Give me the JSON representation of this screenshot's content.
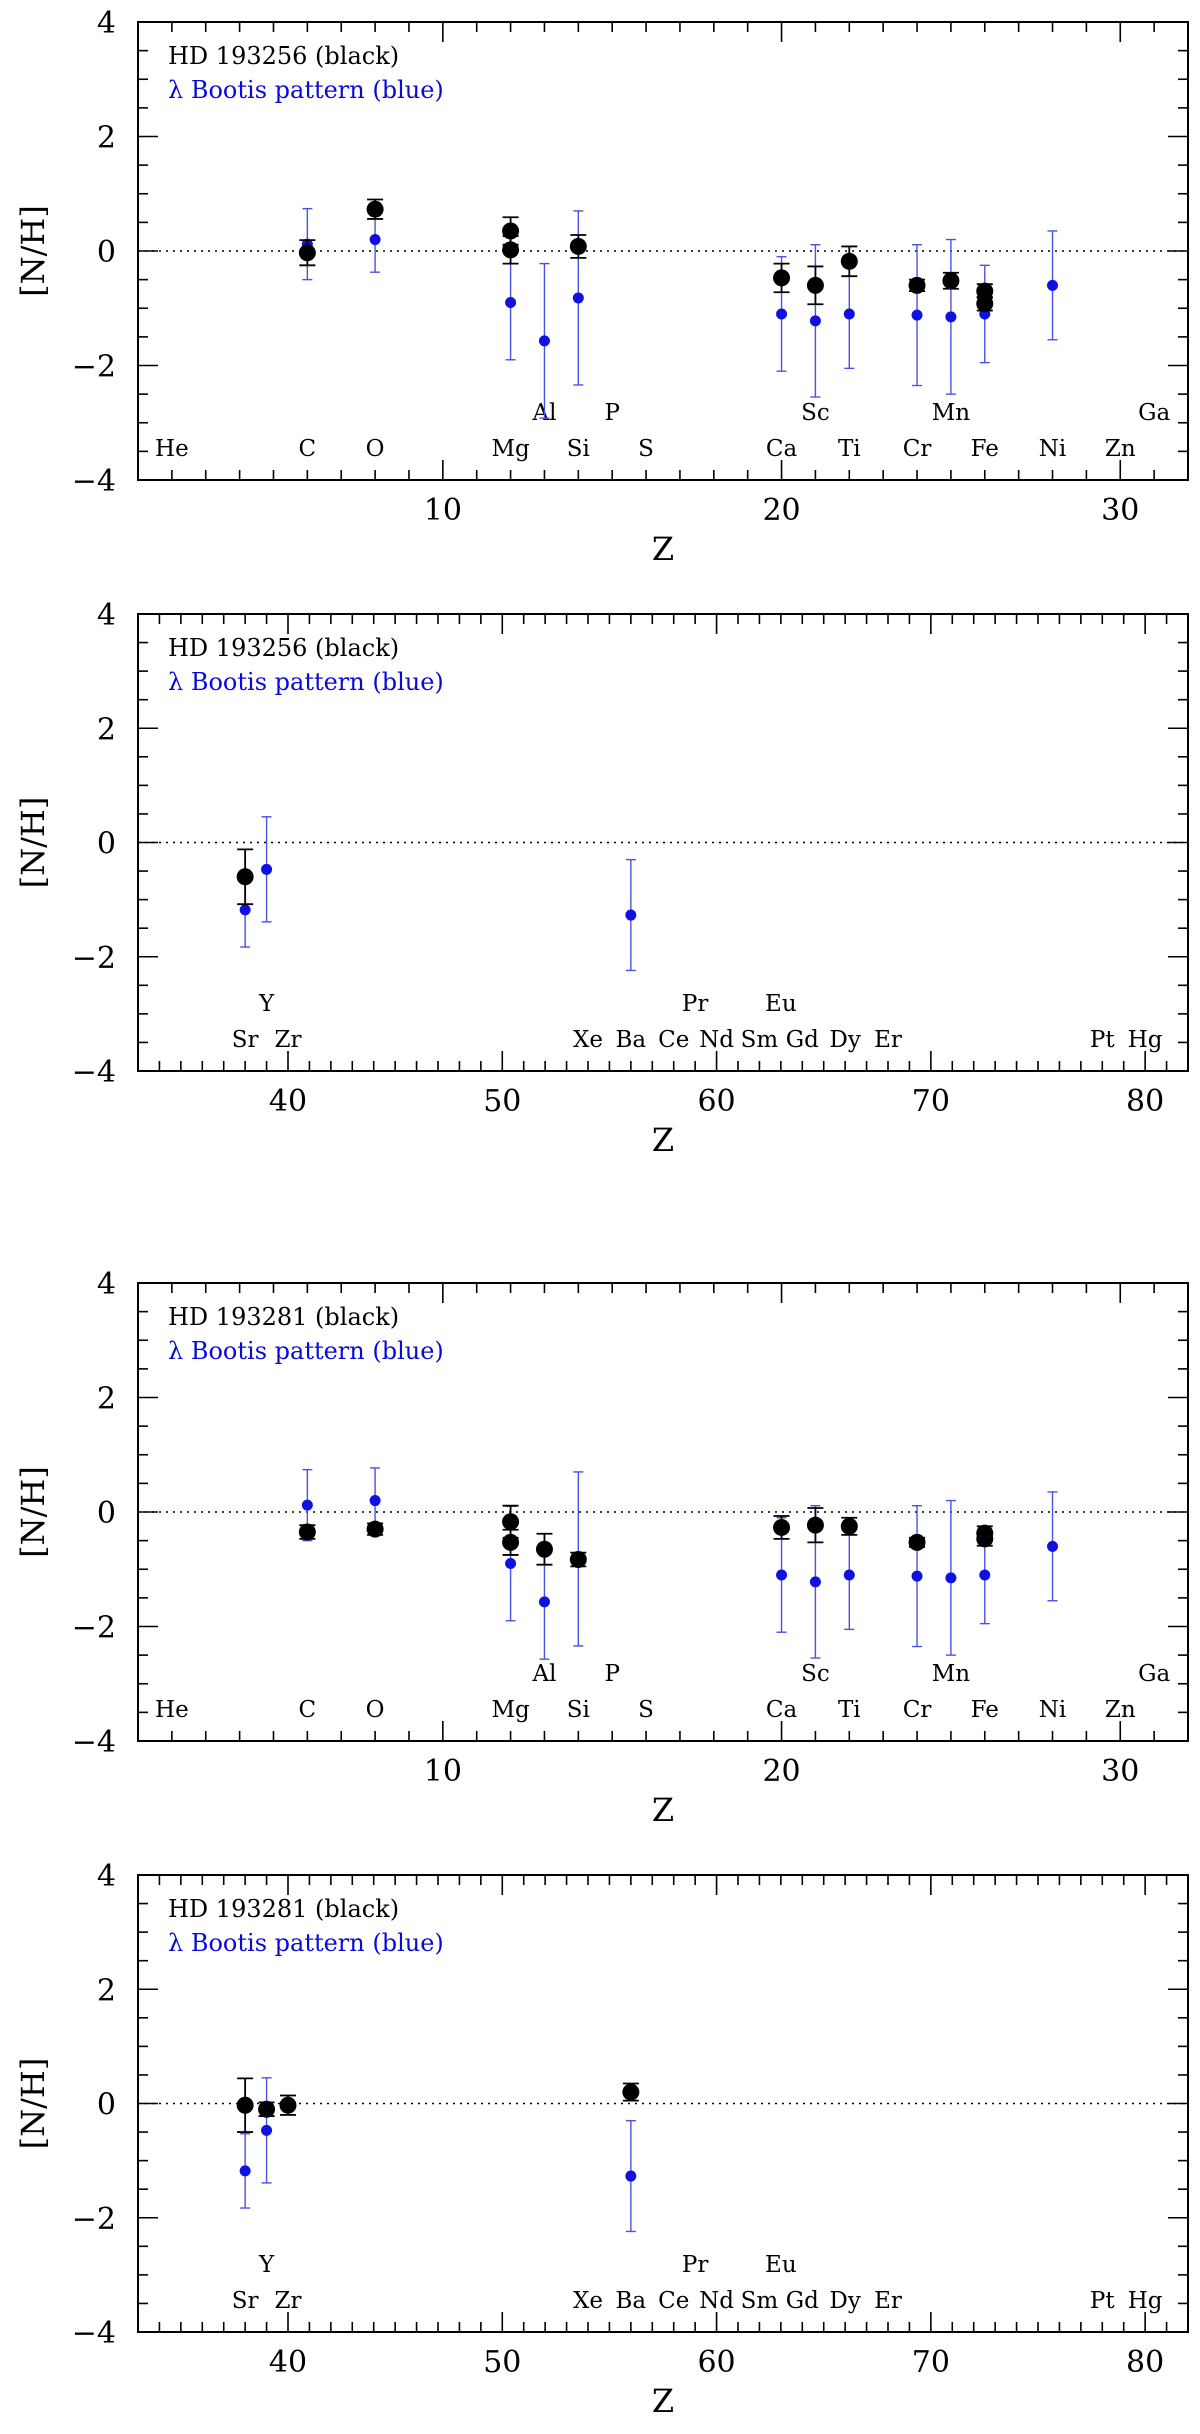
{
  "colors": {
    "black_series": "#000000",
    "blue_series": "#1010e0",
    "blue_errorbar": "#4a52e6"
  },
  "chart_data": [
    {
      "type": "scatter",
      "xlabel": "Z",
      "ylabel": "[N/H]",
      "xlim": [
        1,
        32
      ],
      "ylim": [
        -4,
        4
      ],
      "xticks": [
        10,
        20,
        30
      ],
      "yticks": [
        -4,
        -2,
        0,
        2,
        4
      ],
      "legend": [
        "HD 193256 (black)",
        "λ Bootis pattern (blue)"
      ],
      "element_labels": [
        {
          "sym": "He",
          "z": 2,
          "row": "lower"
        },
        {
          "sym": "C",
          "z": 6,
          "row": "lower"
        },
        {
          "sym": "O",
          "z": 8,
          "row": "lower"
        },
        {
          "sym": "Mg",
          "z": 12,
          "row": "lower"
        },
        {
          "sym": "Al",
          "z": 13,
          "row": "upper"
        },
        {
          "sym": "Si",
          "z": 14,
          "row": "lower"
        },
        {
          "sym": "P",
          "z": 15,
          "row": "upper"
        },
        {
          "sym": "S",
          "z": 16,
          "row": "lower"
        },
        {
          "sym": "Ca",
          "z": 20,
          "row": "lower"
        },
        {
          "sym": "Sc",
          "z": 21,
          "row": "upper"
        },
        {
          "sym": "Ti",
          "z": 22,
          "row": "lower"
        },
        {
          "sym": "Cr",
          "z": 24,
          "row": "lower"
        },
        {
          "sym": "Mn",
          "z": 25,
          "row": "upper"
        },
        {
          "sym": "Fe",
          "z": 26,
          "row": "lower"
        },
        {
          "sym": "Ni",
          "z": 28,
          "row": "lower"
        },
        {
          "sym": "Zn",
          "z": 30,
          "row": "lower"
        },
        {
          "sym": "Ga",
          "z": 31,
          "row": "upper"
        }
      ],
      "series": [
        {
          "name": "HD 193256",
          "color": "black",
          "points": [
            {
              "x": 6,
              "y": -0.03,
              "err": 0.22
            },
            {
              "x": 8,
              "y": 0.73,
              "err": 0.17
            },
            {
              "x": 12,
              "y": 0.35,
              "err": 0.24
            },
            {
              "x": 12,
              "y": 0.02,
              "err": 0.24
            },
            {
              "x": 14,
              "y": 0.08,
              "err": 0.2
            },
            {
              "x": 20,
              "y": -0.47,
              "err": 0.25
            },
            {
              "x": 21,
              "y": -0.6,
              "err": 0.33
            },
            {
              "x": 22,
              "y": -0.18,
              "err": 0.26
            },
            {
              "x": 24,
              "y": -0.6,
              "err": 0.1
            },
            {
              "x": 25,
              "y": -0.52,
              "err": 0.14
            },
            {
              "x": 26,
              "y": -0.7,
              "err": 0.12
            },
            {
              "x": 26,
              "y": -0.92,
              "err": 0.12
            }
          ]
        },
        {
          "name": "λ Bootis pattern",
          "color": "blue",
          "points": [
            {
              "x": 6,
              "y": 0.12,
              "err": 0.62
            },
            {
              "x": 8,
              "y": 0.2,
              "err": 0.57
            },
            {
              "x": 12,
              "y": -0.9,
              "err": 1.0
            },
            {
              "x": 13,
              "y": -1.57,
              "err": 1.35
            },
            {
              "x": 14,
              "y": -0.82,
              "err": 1.52
            },
            {
              "x": 20,
              "y": -1.1,
              "err": 1.0
            },
            {
              "x": 21,
              "y": -1.22,
              "err": 1.33
            },
            {
              "x": 22,
              "y": -1.1,
              "err": 0.95
            },
            {
              "x": 24,
              "y": -1.12,
              "err": 1.23
            },
            {
              "x": 25,
              "y": -1.15,
              "err": 1.35
            },
            {
              "x": 26,
              "y": -1.1,
              "err": 0.85
            },
            {
              "x": 28,
              "y": -0.6,
              "err": 0.95
            }
          ]
        }
      ]
    },
    {
      "type": "scatter",
      "xlabel": "Z",
      "ylabel": "[N/H]",
      "xlim": [
        33,
        82
      ],
      "ylim": [
        -4,
        4
      ],
      "xticks": [
        40,
        50,
        60,
        70,
        80
      ],
      "yticks": [
        -4,
        -2,
        0,
        2,
        4
      ],
      "legend": [
        "HD 193256 (black)",
        "λ Bootis pattern (blue)"
      ],
      "element_labels": [
        {
          "sym": "Sr",
          "z": 38,
          "row": "lower"
        },
        {
          "sym": "Y",
          "z": 39,
          "row": "upper"
        },
        {
          "sym": "Zr",
          "z": 40,
          "row": "lower"
        },
        {
          "sym": "Xe",
          "z": 54,
          "row": "lower"
        },
        {
          "sym": "Ba",
          "z": 56,
          "row": "lower"
        },
        {
          "sym": "Ce",
          "z": 58,
          "row": "lower"
        },
        {
          "sym": "Pr",
          "z": 59,
          "row": "upper"
        },
        {
          "sym": "Nd",
          "z": 60,
          "row": "lower"
        },
        {
          "sym": "Sm",
          "z": 62,
          "row": "lower"
        },
        {
          "sym": "Eu",
          "z": 63,
          "row": "upper"
        },
        {
          "sym": "Gd",
          "z": 64,
          "row": "lower"
        },
        {
          "sym": "Dy",
          "z": 66,
          "row": "lower"
        },
        {
          "sym": "Er",
          "z": 68,
          "row": "lower"
        },
        {
          "sym": "Pt",
          "z": 78,
          "row": "lower"
        },
        {
          "sym": "Hg",
          "z": 80,
          "row": "lower"
        }
      ],
      "series": [
        {
          "name": "HD 193256",
          "color": "black",
          "points": [
            {
              "x": 38,
              "y": -0.6,
              "err": 0.48
            }
          ]
        },
        {
          "name": "λ Bootis pattern",
          "color": "blue",
          "points": [
            {
              "x": 38,
              "y": -1.18,
              "err": 0.65
            },
            {
              "x": 39,
              "y": -0.47,
              "err": 0.92
            },
            {
              "x": 56,
              "y": -1.27,
              "err": 0.97
            }
          ]
        }
      ]
    },
    {
      "type": "scatter",
      "xlabel": "Z",
      "ylabel": "[N/H]",
      "xlim": [
        1,
        32
      ],
      "ylim": [
        -4,
        4
      ],
      "xticks": [
        10,
        20,
        30
      ],
      "yticks": [
        -4,
        -2,
        0,
        2,
        4
      ],
      "legend": [
        "HD 193281 (black)",
        "λ Bootis pattern (blue)"
      ],
      "element_labels": [
        {
          "sym": "He",
          "z": 2,
          "row": "lower"
        },
        {
          "sym": "C",
          "z": 6,
          "row": "lower"
        },
        {
          "sym": "O",
          "z": 8,
          "row": "lower"
        },
        {
          "sym": "Mg",
          "z": 12,
          "row": "lower"
        },
        {
          "sym": "Al",
          "z": 13,
          "row": "upper"
        },
        {
          "sym": "Si",
          "z": 14,
          "row": "lower"
        },
        {
          "sym": "P",
          "z": 15,
          "row": "upper"
        },
        {
          "sym": "S",
          "z": 16,
          "row": "lower"
        },
        {
          "sym": "Ca",
          "z": 20,
          "row": "lower"
        },
        {
          "sym": "Sc",
          "z": 21,
          "row": "upper"
        },
        {
          "sym": "Ti",
          "z": 22,
          "row": "lower"
        },
        {
          "sym": "Cr",
          "z": 24,
          "row": "lower"
        },
        {
          "sym": "Mn",
          "z": 25,
          "row": "upper"
        },
        {
          "sym": "Fe",
          "z": 26,
          "row": "lower"
        },
        {
          "sym": "Ni",
          "z": 28,
          "row": "lower"
        },
        {
          "sym": "Zn",
          "z": 30,
          "row": "lower"
        },
        {
          "sym": "Ga",
          "z": 31,
          "row": "upper"
        }
      ],
      "series": [
        {
          "name": "HD 193281",
          "color": "black",
          "points": [
            {
              "x": 6,
              "y": -0.35,
              "err": 0.12
            },
            {
              "x": 8,
              "y": -0.3,
              "err": 0.1
            },
            {
              "x": 12,
              "y": -0.17,
              "err": 0.28
            },
            {
              "x": 12,
              "y": -0.53,
              "err": 0.22
            },
            {
              "x": 13,
              "y": -0.65,
              "err": 0.27
            },
            {
              "x": 14,
              "y": -0.83,
              "err": 0.12
            },
            {
              "x": 20,
              "y": -0.27,
              "err": 0.2
            },
            {
              "x": 21,
              "y": -0.23,
              "err": 0.3
            },
            {
              "x": 22,
              "y": -0.25,
              "err": 0.15
            },
            {
              "x": 24,
              "y": -0.53,
              "err": 0.08
            },
            {
              "x": 26,
              "y": -0.37,
              "err": 0.12
            },
            {
              "x": 26,
              "y": -0.47,
              "err": 0.12
            }
          ]
        },
        {
          "name": "λ Bootis pattern",
          "color": "blue",
          "points": [
            {
              "x": 6,
              "y": 0.12,
              "err": 0.62
            },
            {
              "x": 8,
              "y": 0.2,
              "err": 0.57
            },
            {
              "x": 12,
              "y": -0.9,
              "err": 1.0
            },
            {
              "x": 13,
              "y": -1.57,
              "err": 1.0
            },
            {
              "x": 14,
              "y": -0.82,
              "err": 1.52
            },
            {
              "x": 20,
              "y": -1.1,
              "err": 1.0
            },
            {
              "x": 21,
              "y": -1.22,
              "err": 1.33
            },
            {
              "x": 22,
              "y": -1.1,
              "err": 0.95
            },
            {
              "x": 24,
              "y": -1.12,
              "err": 1.23
            },
            {
              "x": 25,
              "y": -1.15,
              "err": 1.35
            },
            {
              "x": 26,
              "y": -1.1,
              "err": 0.85
            },
            {
              "x": 28,
              "y": -0.6,
              "err": 0.95
            }
          ]
        }
      ]
    },
    {
      "type": "scatter",
      "xlabel": "Z",
      "ylabel": "[N/H]",
      "xlim": [
        33,
        82
      ],
      "ylim": [
        -4,
        4
      ],
      "xticks": [
        40,
        50,
        60,
        70,
        80
      ],
      "yticks": [
        -4,
        -2,
        0,
        2,
        4
      ],
      "legend": [
        "HD 193281 (black)",
        "λ Bootis pattern (blue)"
      ],
      "element_labels": [
        {
          "sym": "Sr",
          "z": 38,
          "row": "lower"
        },
        {
          "sym": "Y",
          "z": 39,
          "row": "upper"
        },
        {
          "sym": "Zr",
          "z": 40,
          "row": "lower"
        },
        {
          "sym": "Xe",
          "z": 54,
          "row": "lower"
        },
        {
          "sym": "Ba",
          "z": 56,
          "row": "lower"
        },
        {
          "sym": "Ce",
          "z": 58,
          "row": "lower"
        },
        {
          "sym": "Pr",
          "z": 59,
          "row": "upper"
        },
        {
          "sym": "Nd",
          "z": 60,
          "row": "lower"
        },
        {
          "sym": "Sm",
          "z": 62,
          "row": "lower"
        },
        {
          "sym": "Eu",
          "z": 63,
          "row": "upper"
        },
        {
          "sym": "Gd",
          "z": 64,
          "row": "lower"
        },
        {
          "sym": "Dy",
          "z": 66,
          "row": "lower"
        },
        {
          "sym": "Er",
          "z": 68,
          "row": "lower"
        },
        {
          "sym": "Pt",
          "z": 78,
          "row": "lower"
        },
        {
          "sym": "Hg",
          "z": 80,
          "row": "lower"
        }
      ],
      "series": [
        {
          "name": "HD 193281",
          "color": "black",
          "points": [
            {
              "x": 38,
              "y": -0.03,
              "err": 0.47
            },
            {
              "x": 39,
              "y": -0.1,
              "err": 0.12
            },
            {
              "x": 40,
              "y": -0.03,
              "err": 0.17
            },
            {
              "x": 56,
              "y": 0.2,
              "err": 0.15
            }
          ]
        },
        {
          "name": "λ Bootis pattern",
          "color": "blue",
          "points": [
            {
              "x": 38,
              "y": -1.18,
              "err": 0.65
            },
            {
              "x": 39,
              "y": -0.47,
              "err": 0.92
            },
            {
              "x": 56,
              "y": -1.27,
              "err": 0.97
            }
          ]
        }
      ]
    }
  ]
}
